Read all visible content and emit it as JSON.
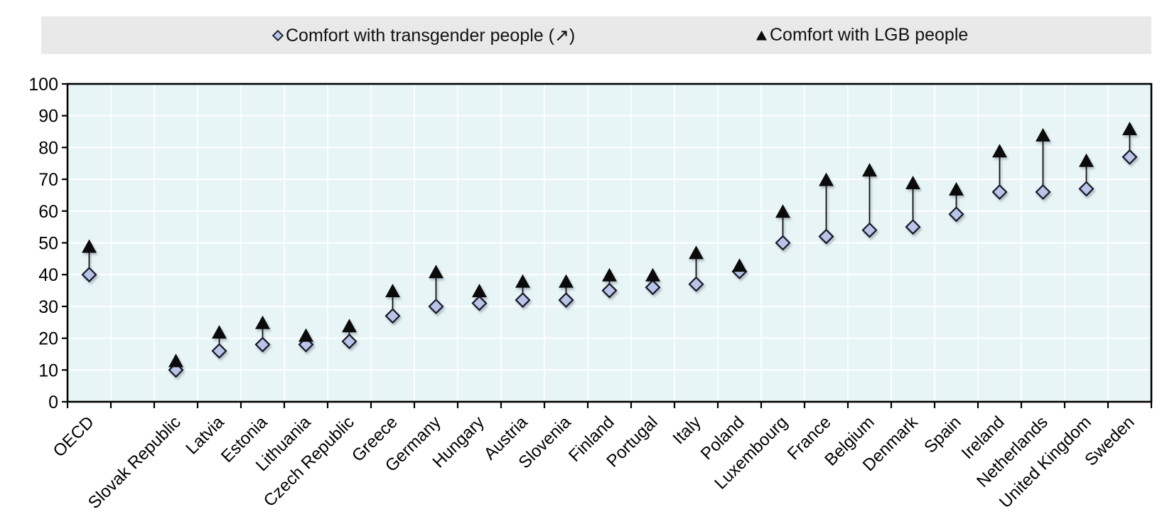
{
  "page": {
    "background": "#ffffff"
  },
  "legend": {
    "background": "#e9e9e9"
  },
  "chart_data": {
    "type": "scatter",
    "subtype": "dumbbell-comparison",
    "title": "",
    "xlabel": "",
    "ylabel": "",
    "categories": [
      "OECD",
      "Slovak Republic",
      "Latvia",
      "Estonia",
      "Lithuania",
      "Czech Republic",
      "Greece",
      "Germany",
      "Hungary",
      "Austria",
      "Slovenia",
      "Finland",
      "Portugal",
      "Italy",
      "Poland",
      "Luxembourg",
      "France",
      "Belgium",
      "Denmark",
      "Spain",
      "Ireland",
      "Netherlands",
      "United Kingdom",
      "Sweden"
    ],
    "series": [
      {
        "name": "Comfort with transgender people (↗)",
        "marker": "diamond",
        "color": "#b9c5e8",
        "border_color": "#181828",
        "values": [
          40,
          10,
          16,
          18,
          18,
          19,
          27,
          30,
          31,
          32,
          32,
          35,
          36,
          37,
          41,
          50,
          52,
          54,
          55,
          59,
          66,
          66,
          67,
          77
        ]
      },
      {
        "name": "Comfort with LGB people",
        "marker": "triangle",
        "color": "#0b0b0b",
        "border_color": "#0b0b0b",
        "values": [
          49,
          13,
          22,
          25,
          21,
          24,
          35,
          41,
          35,
          38,
          38,
          40,
          40,
          47,
          43,
          60,
          70,
          73,
          69,
          67,
          79,
          84,
          76,
          86
        ]
      }
    ],
    "connector_lines": true,
    "ylim": [
      0,
      100
    ],
    "yticks": [
      0,
      10,
      20,
      30,
      40,
      50,
      60,
      70,
      80,
      90,
      100
    ],
    "plot_background": "#e8f5f6",
    "grid": {
      "color": "#ffffff",
      "horizontal": true,
      "vertical": true
    },
    "axis_color": "#000000",
    "layout_hints": {
      "legend_position": "top",
      "x_labels_rotation_deg": -45,
      "gap_after_category_index": 0
    }
  }
}
